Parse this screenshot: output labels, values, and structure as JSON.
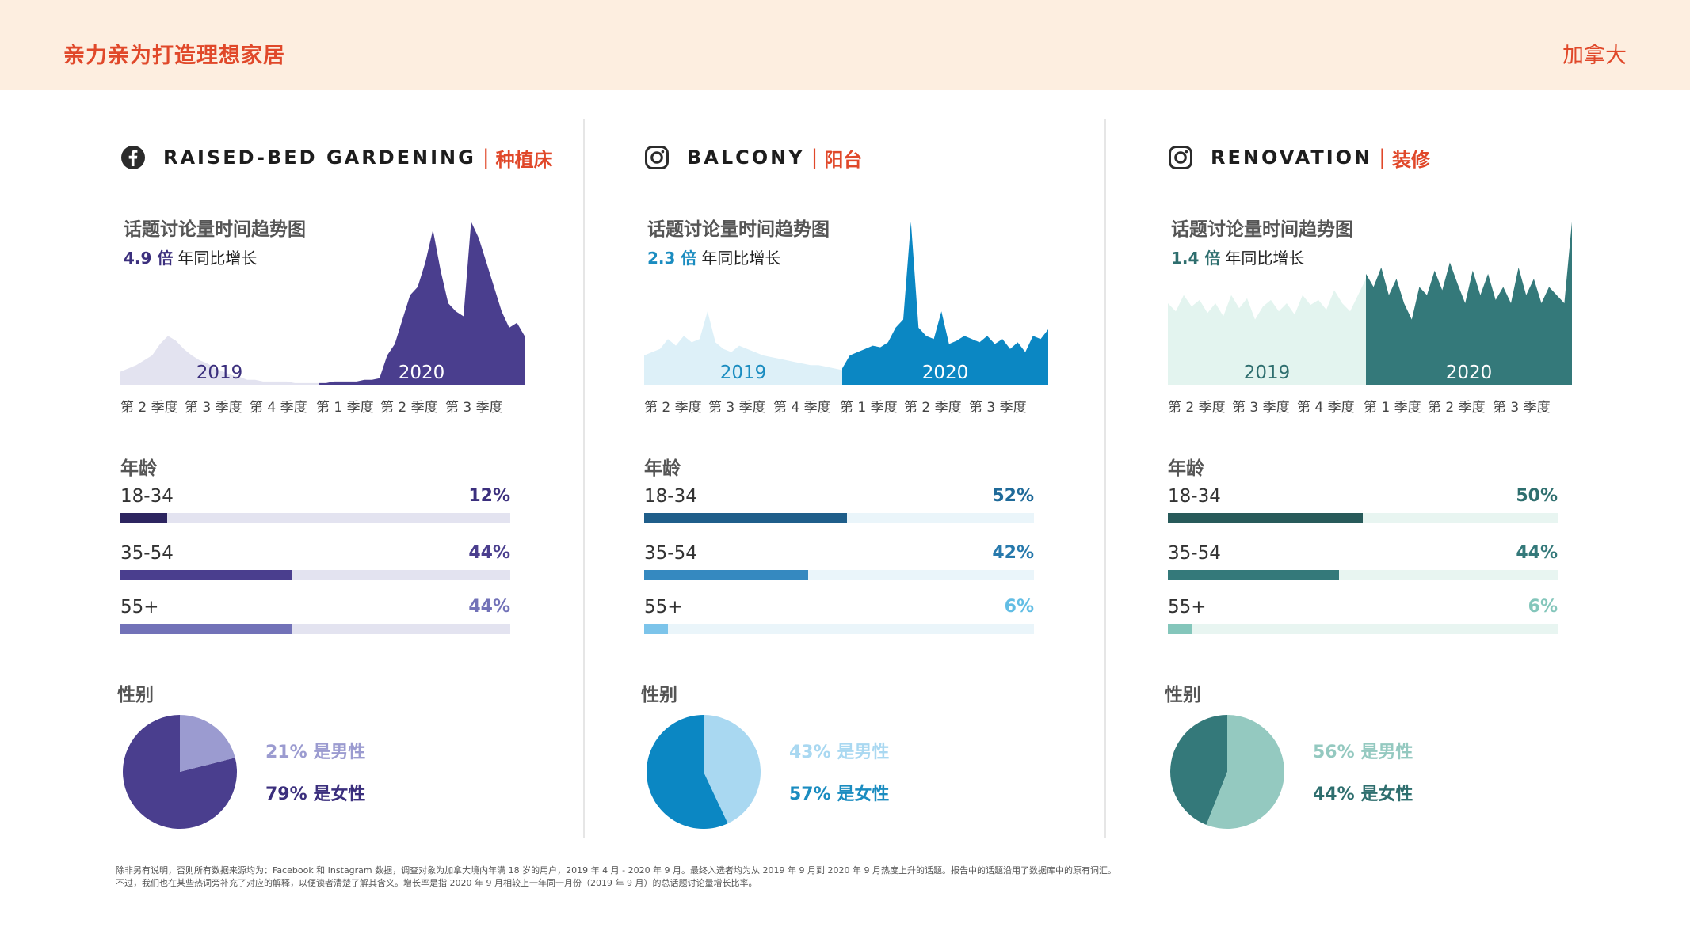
{
  "header": {
    "title": "亲力亲为打造理想家居",
    "country": "加拿大"
  },
  "common": {
    "trend_label": "话题讨论量时间趋势图",
    "growth_suffix": "年同比增长",
    "age_label": "年龄",
    "gender_label": "性别",
    "year_2019": "2019",
    "year_2020": "2020",
    "quarters": [
      "第 2 季度",
      "第 3 季度",
      "第 4 季度",
      "第 1 季度",
      "第 2 季度",
      "第 3 季度"
    ]
  },
  "panels": [
    {
      "platform_icon": "facebook-icon",
      "title_en": "RAISED-BED GARDENING",
      "separator": "|",
      "title_zh": "种植床",
      "growth": "4.9 倍",
      "colors": {
        "primary": "#4a3e8e",
        "light": "#e3e3f0",
        "accent": "#3b2f7d",
        "pie_light": "#9b9bd0",
        "bar": [
          "#2d2560",
          "#4a3e8e",
          "#7272b8"
        ],
        "track": "#e3e3f0",
        "pct_color": [
          "#3b2f7d",
          "#4a3e8e",
          "#7272b8"
        ]
      },
      "chart_data": {
        "type": "area",
        "title": "话题讨论量时间趋势图",
        "x_labels": [
          "第 2 季度",
          "第 3 季度",
          "第 4 季度",
          "第 1 季度",
          "第 2 季度",
          "第 3 季度"
        ],
        "series": [
          {
            "name": "2019",
            "values": [
              8,
              10,
              12,
              15,
              18,
              25,
              30,
              27,
              22,
              18,
              15,
              13,
              10,
              8,
              6,
              5,
              3,
              3,
              2,
              2,
              2,
              2,
              1,
              1,
              1,
              1
            ]
          },
          {
            "name": "2020",
            "values": [
              1,
              1,
              2,
              2,
              2,
              2,
              3,
              3,
              4,
              18,
              25,
              40,
              55,
              60,
              75,
              95,
              70,
              50,
              45,
              42,
              100,
              90,
              75,
              60,
              45,
              35,
              38,
              30
            ]
          }
        ],
        "ylim": [
          0,
          100
        ]
      },
      "age": [
        {
          "label": "18-34",
          "pct": "12%",
          "value": 12
        },
        {
          "label": "35-54",
          "pct": "44%",
          "value": 44
        },
        {
          "label": "55+",
          "pct": "44%",
          "value": 44
        }
      ],
      "gender": {
        "male_pct": 21,
        "female_pct": 79,
        "male_text": "21% 是男性",
        "female_text": "79% 是女性"
      }
    },
    {
      "platform_icon": "instagram-icon",
      "title_en": "BALCONY",
      "separator": "|",
      "title_zh": "阳台",
      "growth": "2.3 倍",
      "colors": {
        "primary": "#0b87c3",
        "light": "#ddf0f8",
        "accent": "#1a8cc0",
        "pie_light": "#a9d8f1",
        "bar": [
          "#1f5e8a",
          "#3589c0",
          "#7cc4ea"
        ],
        "track": "#eaf5fa",
        "pct_color": [
          "#1f6a99",
          "#2779ac",
          "#62bde4"
        ]
      },
      "chart_data": {
        "type": "area",
        "title": "话题讨论量时间趋势图",
        "x_labels": [
          "第 2 季度",
          "第 3 季度",
          "第 4 季度",
          "第 1 季度",
          "第 2 季度",
          "第 3 季度"
        ],
        "series": [
          {
            "name": "2019",
            "values": [
              18,
              20,
              22,
              28,
              24,
              30,
              26,
              28,
              45,
              26,
              22,
              20,
              24,
              22,
              20,
              18,
              17,
              16,
              15,
              14,
              13,
              12,
              12,
              11,
              10,
              9
            ]
          },
          {
            "name": "2020",
            "values": [
              10,
              18,
              20,
              22,
              24,
              23,
              26,
              35,
              40,
              100,
              35,
              30,
              28,
              45,
              25,
              27,
              30,
              28,
              26,
              30,
              25,
              28,
              22,
              26,
              20,
              30,
              28,
              34
            ]
          }
        ],
        "ylim": [
          0,
          100
        ]
      },
      "age": [
        {
          "label": "18-34",
          "pct": "52%",
          "value": 52
        },
        {
          "label": "35-54",
          "pct": "42%",
          "value": 42
        },
        {
          "label": "55+",
          "pct": "6%",
          "value": 6
        }
      ],
      "gender": {
        "male_pct": 43,
        "female_pct": 57,
        "male_text": "43% 是男性",
        "female_text": "57% 是女性"
      }
    },
    {
      "platform_icon": "instagram-icon",
      "title_en": "RENOVATION",
      "separator": "|",
      "title_zh": "装修",
      "growth": "1.4 倍",
      "colors": {
        "primary": "#34797a",
        "light": "#e3f4ef",
        "accent": "#2e6e6e",
        "pie_light": "#94c9c0",
        "bar": [
          "#285a5a",
          "#34797a",
          "#84c6bb"
        ],
        "track": "#e8f5f1",
        "pct_color": [
          "#2e6e6e",
          "#34797a",
          "#84c6bb"
        ]
      },
      "chart_data": {
        "type": "area",
        "title": "话题讨论量时间趋势图",
        "x_labels": [
          "第 2 季度",
          "第 3 季度",
          "第 4 季度",
          "第 1 季度",
          "第 2 季度",
          "第 3 季度"
        ],
        "series": [
          {
            "name": "2019",
            "values": [
              50,
              45,
              55,
              48,
              52,
              44,
              50,
              42,
              55,
              47,
              53,
              40,
              48,
              52,
              45,
              50,
              43,
              55,
              49,
              52,
              46,
              58,
              50,
              45,
              55,
              65
            ]
          },
          {
            "name": "2020",
            "values": [
              68,
              60,
              72,
              55,
              65,
              50,
              40,
              60,
              55,
              70,
              58,
              75,
              62,
              50,
              70,
              55,
              68,
              52,
              60,
              50,
              72,
              55,
              65,
              50,
              60,
              55,
              50,
              100
            ]
          }
        ],
        "ylim": [
          0,
          100
        ]
      },
      "age": [
        {
          "label": "18-34",
          "pct": "50%",
          "value": 50
        },
        {
          "label": "35-54",
          "pct": "44%",
          "value": 44
        },
        {
          "label": "55+",
          "pct": "6%",
          "value": 6
        }
      ],
      "gender": {
        "male_pct": 56,
        "female_pct": 44,
        "male_text": "56% 是男性",
        "female_text": "44% 是女性"
      }
    }
  ],
  "footnote": [
    "除非另有说明，否则所有数据来源均为：Facebook 和 Instagram 数据，调查对象为加拿大境内年满 18 岁的用户，2019 年 4 月 - 2020 年 9 月。最终入选者均为从 2019 年 9 月到 2020 年 9 月热度上升的话题。报告中的话题沿用了数据库中的原有词汇。",
    "不过，我们也在某些热词旁补充了对应的解释，以便读者清楚了解其含义。增长率是指 2020 年 9 月相较上一年同一月份（2019 年 9 月）的总话题讨论量增长比率。"
  ]
}
